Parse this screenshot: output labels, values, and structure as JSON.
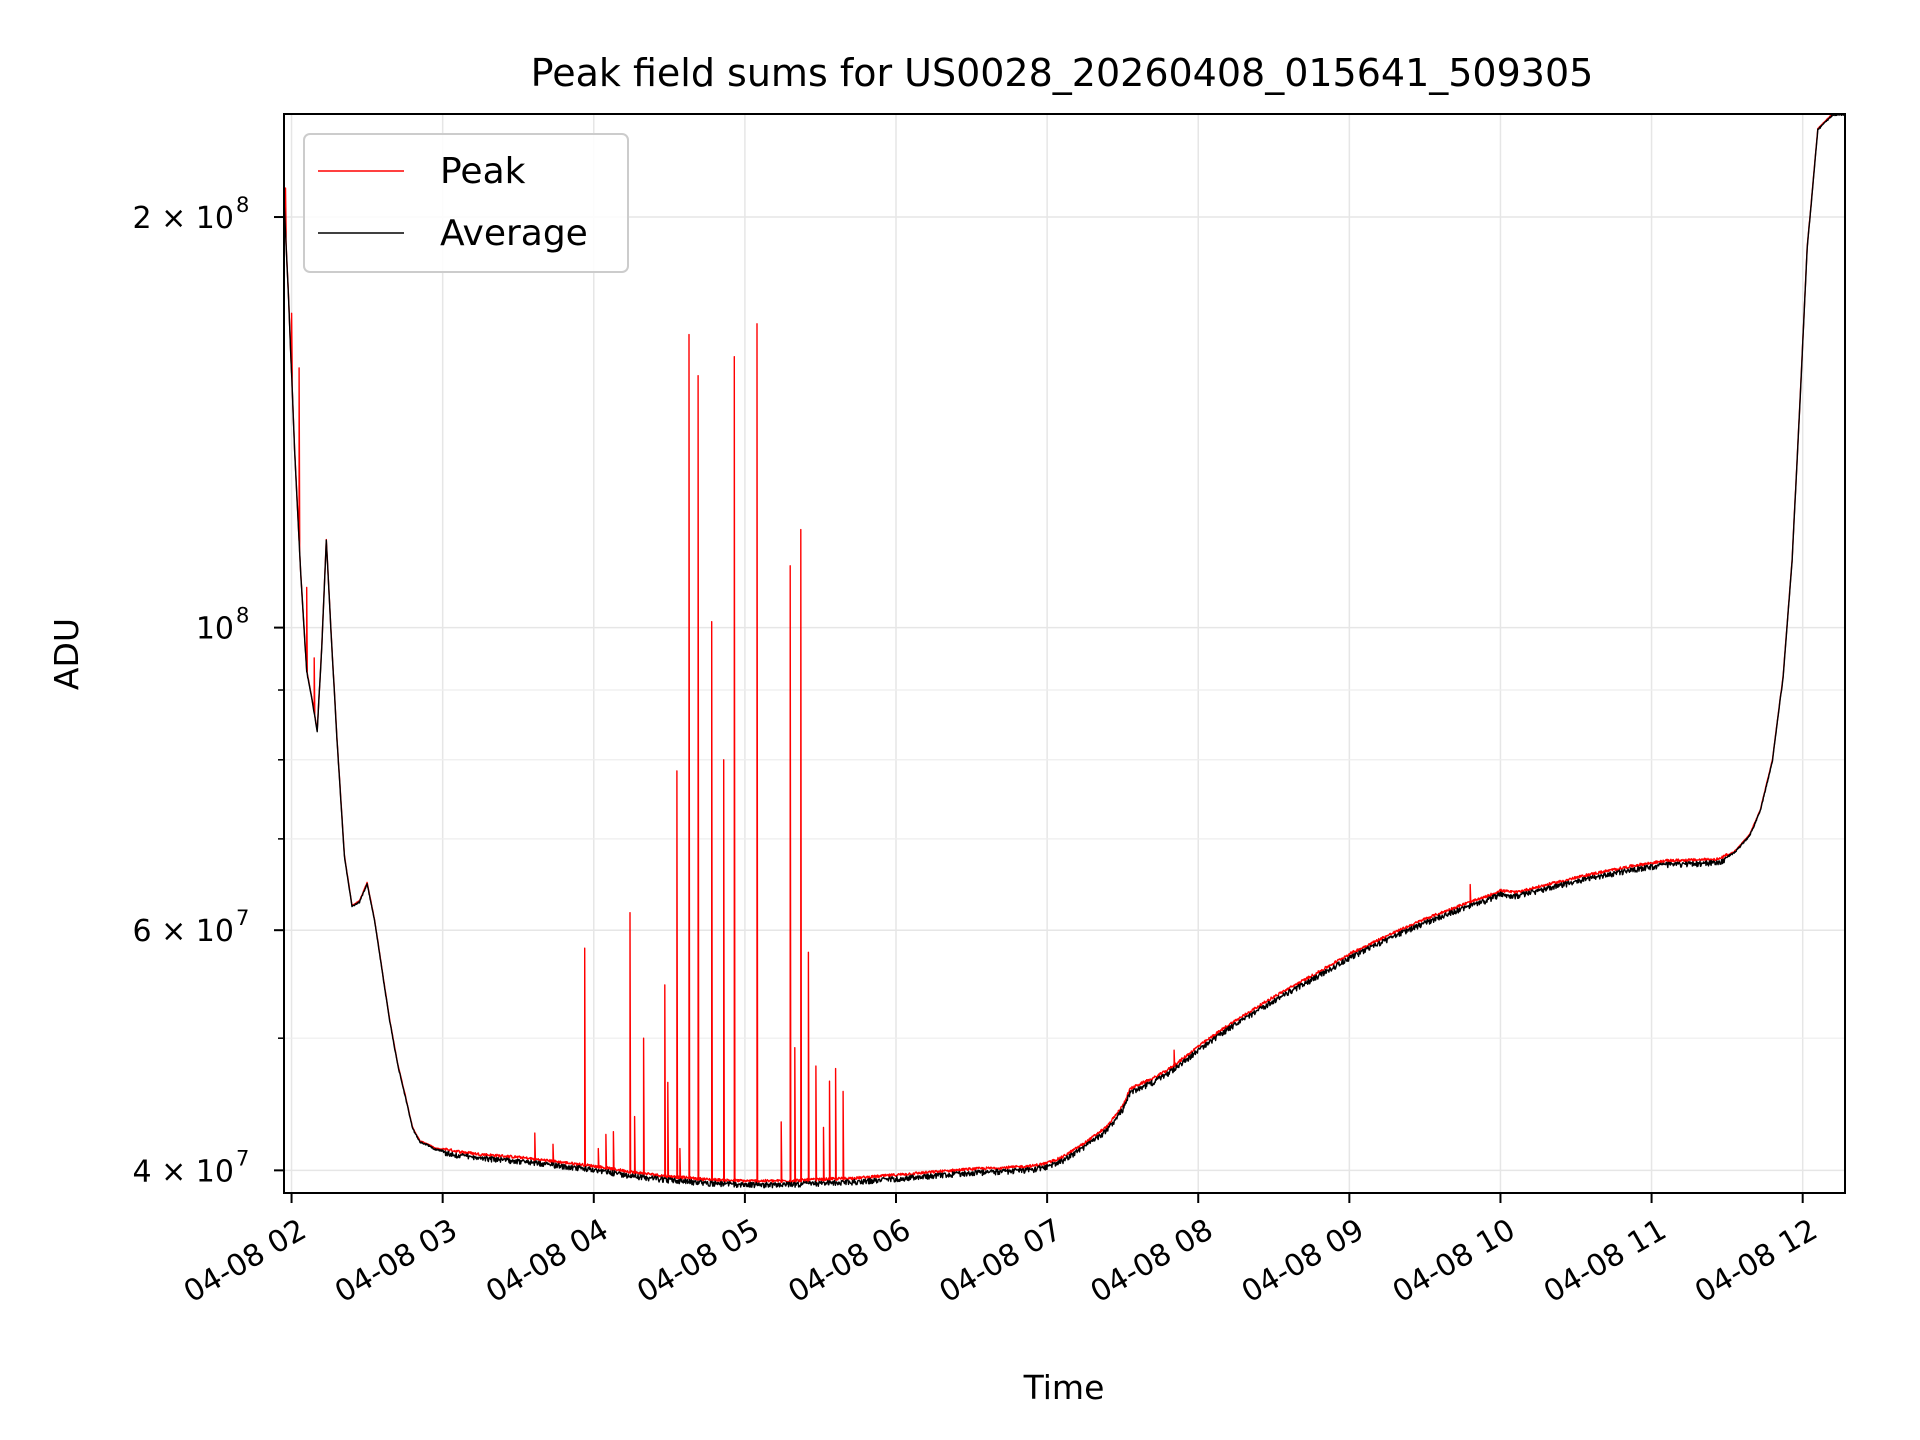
{
  "chart_data": {
    "type": "line",
    "title": "Peak field sums for US0028_20260408_015641_509305",
    "xlabel": "Time",
    "ylabel": "ADU",
    "yscale": "log",
    "ylim": [
      38500000,
      238000000
    ],
    "xlim_hours": [
      1.95,
      12.28
    ],
    "grid": true,
    "legend": {
      "position": "top-left",
      "entries": [
        "Peak",
        "Average"
      ]
    },
    "x_ticks": [
      {
        "hour": 2,
        "label": "04-08 02"
      },
      {
        "hour": 3,
        "label": "04-08 03"
      },
      {
        "hour": 4,
        "label": "04-08 04"
      },
      {
        "hour": 5,
        "label": "04-08 05"
      },
      {
        "hour": 6,
        "label": "04-08 06"
      },
      {
        "hour": 7,
        "label": "04-08 07"
      },
      {
        "hour": 8,
        "label": "04-08 08"
      },
      {
        "hour": 9,
        "label": "04-08 09"
      },
      {
        "hour": 10,
        "label": "04-08 10"
      },
      {
        "hour": 11,
        "label": "04-08 11"
      },
      {
        "hour": 12,
        "label": "04-08 12"
      }
    ],
    "y_ticks": [
      {
        "value": 40000000,
        "label": "4 × 10",
        "exp": "7"
      },
      {
        "value": 60000000,
        "label": "6 × 10",
        "exp": "7"
      },
      {
        "value": 100000000,
        "label": "10",
        "exp": "8"
      },
      {
        "value": 200000000,
        "label": "2 × 10",
        "exp": "8"
      }
    ],
    "y_minor_ticks": [
      50000000,
      70000000,
      80000000,
      90000000
    ],
    "series": [
      {
        "name": "Average",
        "color": "#000000",
        "noise": 0.006,
        "x": [
          1.95,
          1.98,
          2.02,
          2.06,
          2.1,
          2.14,
          2.17,
          2.2,
          2.23,
          2.26,
          2.3,
          2.35,
          2.4,
          2.45,
          2.5,
          2.55,
          2.6,
          2.65,
          2.7,
          2.75,
          2.8,
          2.85,
          2.9,
          2.95,
          3.0,
          3.1,
          3.25,
          3.5,
          3.75,
          4.0,
          4.25,
          4.5,
          4.75,
          5.0,
          5.25,
          5.5,
          5.75,
          6.0,
          6.25,
          6.5,
          6.75,
          6.9,
          7.0,
          7.1,
          7.25,
          7.4,
          7.5,
          7.55,
          7.62,
          7.7,
          7.8,
          7.9,
          8.0,
          8.2,
          8.5,
          8.8,
          9.0,
          9.25,
          9.5,
          9.75,
          9.9,
          10.0,
          10.1,
          10.3,
          10.6,
          10.9,
          11.1,
          11.3,
          11.45,
          11.55,
          11.65,
          11.72,
          11.8,
          11.87,
          11.93,
          11.98,
          12.03,
          12.1,
          12.2,
          12.28
        ],
        "y": [
          206000000,
          175000000,
          135000000,
          110000000,
          93000000,
          88000000,
          84000000,
          97000000,
          116000000,
          100000000,
          83000000,
          68000000,
          62500000,
          63000000,
          65000000,
          61000000,
          56000000,
          51500000,
          48000000,
          45500000,
          43000000,
          42000000,
          41800000,
          41500000,
          41400000,
          41200000,
          41000000,
          40800000,
          40500000,
          40200000,
          39800000,
          39500000,
          39300000,
          39200000,
          39200000,
          39300000,
          39400000,
          39600000,
          39800000,
          40000000,
          40100000,
          40200000,
          40400000,
          40800000,
          41800000,
          43000000,
          44500000,
          45800000,
          46200000,
          46600000,
          47300000,
          48200000,
          49200000,
          51000000,
          53500000,
          55800000,
          57500000,
          59300000,
          61000000,
          62500000,
          63300000,
          64000000,
          63800000,
          64600000,
          65800000,
          66800000,
          67300000,
          67400000,
          67500000,
          68500000,
          70500000,
          73500000,
          80000000,
          92000000,
          112000000,
          145000000,
          190000000,
          232000000,
          238000000,
          238000000
        ]
      },
      {
        "name": "Peak",
        "color": "#ff0000",
        "spikes": [
          {
            "x": 1.96,
            "y": 210000000
          },
          {
            "x": 2.0,
            "y": 170000000
          },
          {
            "x": 2.05,
            "y": 155000000
          },
          {
            "x": 2.1,
            "y": 107000000
          },
          {
            "x": 2.15,
            "y": 95000000
          },
          {
            "x": 3.61,
            "y": 42600000
          },
          {
            "x": 3.73,
            "y": 41800000
          },
          {
            "x": 3.94,
            "y": 58200000
          },
          {
            "x": 4.03,
            "y": 41500000
          },
          {
            "x": 4.08,
            "y": 42500000
          },
          {
            "x": 4.13,
            "y": 42700000
          },
          {
            "x": 4.24,
            "y": 61800000
          },
          {
            "x": 4.27,
            "y": 43800000
          },
          {
            "x": 4.33,
            "y": 50000000
          },
          {
            "x": 4.47,
            "y": 54700000
          },
          {
            "x": 4.49,
            "y": 46400000
          },
          {
            "x": 4.55,
            "y": 78500000
          },
          {
            "x": 4.57,
            "y": 41500000
          },
          {
            "x": 4.63,
            "y": 164000000
          },
          {
            "x": 4.69,
            "y": 153000000
          },
          {
            "x": 4.78,
            "y": 101000000
          },
          {
            "x": 4.86,
            "y": 80000000
          },
          {
            "x": 4.93,
            "y": 158000000
          },
          {
            "x": 5.08,
            "y": 167000000
          },
          {
            "x": 5.24,
            "y": 43400000
          },
          {
            "x": 5.3,
            "y": 111000000
          },
          {
            "x": 5.33,
            "y": 49200000
          },
          {
            "x": 5.37,
            "y": 118000000
          },
          {
            "x": 5.42,
            "y": 57800000
          },
          {
            "x": 5.47,
            "y": 47700000
          },
          {
            "x": 5.52,
            "y": 43000000
          },
          {
            "x": 5.56,
            "y": 46500000
          },
          {
            "x": 5.6,
            "y": 47500000
          },
          {
            "x": 5.65,
            "y": 45700000
          },
          {
            "x": 7.84,
            "y": 49000000
          },
          {
            "x": 9.8,
            "y": 64800000
          }
        ]
      }
    ]
  }
}
